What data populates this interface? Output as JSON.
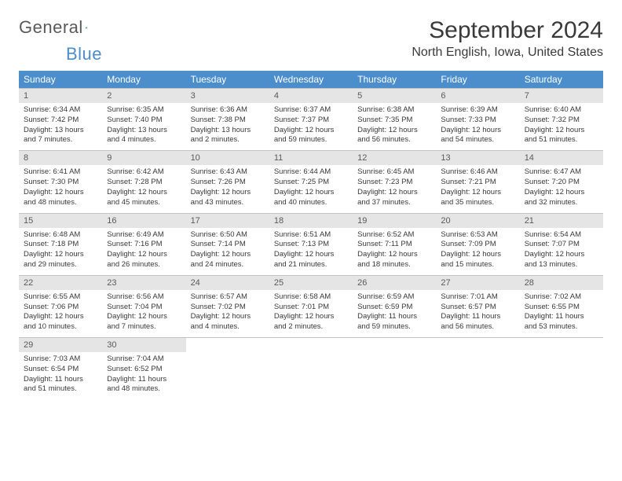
{
  "logo": {
    "word1": "General",
    "word2": "Blue"
  },
  "title": "September 2024",
  "location": "North English, Iowa, United States",
  "styling": {
    "header_bg": "#4b8ecb",
    "header_text": "#ffffff",
    "daynum_bg": "#e5e5e5",
    "body_text": "#3a3a3a",
    "border": "#c4c4c4",
    "page_bg": "#ffffff",
    "title_fontsize": 30,
    "location_fontsize": 16,
    "cell_fontsize": 9.5
  },
  "dayHeaders": [
    "Sunday",
    "Monday",
    "Tuesday",
    "Wednesday",
    "Thursday",
    "Friday",
    "Saturday"
  ],
  "days": [
    {
      "n": 1,
      "sunrise": "6:34 AM",
      "sunset": "7:42 PM",
      "daylight": "13 hours and 7 minutes."
    },
    {
      "n": 2,
      "sunrise": "6:35 AM",
      "sunset": "7:40 PM",
      "daylight": "13 hours and 4 minutes."
    },
    {
      "n": 3,
      "sunrise": "6:36 AM",
      "sunset": "7:38 PM",
      "daylight": "13 hours and 2 minutes."
    },
    {
      "n": 4,
      "sunrise": "6:37 AM",
      "sunset": "7:37 PM",
      "daylight": "12 hours and 59 minutes."
    },
    {
      "n": 5,
      "sunrise": "6:38 AM",
      "sunset": "7:35 PM",
      "daylight": "12 hours and 56 minutes."
    },
    {
      "n": 6,
      "sunrise": "6:39 AM",
      "sunset": "7:33 PM",
      "daylight": "12 hours and 54 minutes."
    },
    {
      "n": 7,
      "sunrise": "6:40 AM",
      "sunset": "7:32 PM",
      "daylight": "12 hours and 51 minutes."
    },
    {
      "n": 8,
      "sunrise": "6:41 AM",
      "sunset": "7:30 PM",
      "daylight": "12 hours and 48 minutes."
    },
    {
      "n": 9,
      "sunrise": "6:42 AM",
      "sunset": "7:28 PM",
      "daylight": "12 hours and 45 minutes."
    },
    {
      "n": 10,
      "sunrise": "6:43 AM",
      "sunset": "7:26 PM",
      "daylight": "12 hours and 43 minutes."
    },
    {
      "n": 11,
      "sunrise": "6:44 AM",
      "sunset": "7:25 PM",
      "daylight": "12 hours and 40 minutes."
    },
    {
      "n": 12,
      "sunrise": "6:45 AM",
      "sunset": "7:23 PM",
      "daylight": "12 hours and 37 minutes."
    },
    {
      "n": 13,
      "sunrise": "6:46 AM",
      "sunset": "7:21 PM",
      "daylight": "12 hours and 35 minutes."
    },
    {
      "n": 14,
      "sunrise": "6:47 AM",
      "sunset": "7:20 PM",
      "daylight": "12 hours and 32 minutes."
    },
    {
      "n": 15,
      "sunrise": "6:48 AM",
      "sunset": "7:18 PM",
      "daylight": "12 hours and 29 minutes."
    },
    {
      "n": 16,
      "sunrise": "6:49 AM",
      "sunset": "7:16 PM",
      "daylight": "12 hours and 26 minutes."
    },
    {
      "n": 17,
      "sunrise": "6:50 AM",
      "sunset": "7:14 PM",
      "daylight": "12 hours and 24 minutes."
    },
    {
      "n": 18,
      "sunrise": "6:51 AM",
      "sunset": "7:13 PM",
      "daylight": "12 hours and 21 minutes."
    },
    {
      "n": 19,
      "sunrise": "6:52 AM",
      "sunset": "7:11 PM",
      "daylight": "12 hours and 18 minutes."
    },
    {
      "n": 20,
      "sunrise": "6:53 AM",
      "sunset": "7:09 PM",
      "daylight": "12 hours and 15 minutes."
    },
    {
      "n": 21,
      "sunrise": "6:54 AM",
      "sunset": "7:07 PM",
      "daylight": "12 hours and 13 minutes."
    },
    {
      "n": 22,
      "sunrise": "6:55 AM",
      "sunset": "7:06 PM",
      "daylight": "12 hours and 10 minutes."
    },
    {
      "n": 23,
      "sunrise": "6:56 AM",
      "sunset": "7:04 PM",
      "daylight": "12 hours and 7 minutes."
    },
    {
      "n": 24,
      "sunrise": "6:57 AM",
      "sunset": "7:02 PM",
      "daylight": "12 hours and 4 minutes."
    },
    {
      "n": 25,
      "sunrise": "6:58 AM",
      "sunset": "7:01 PM",
      "daylight": "12 hours and 2 minutes."
    },
    {
      "n": 26,
      "sunrise": "6:59 AM",
      "sunset": "6:59 PM",
      "daylight": "11 hours and 59 minutes."
    },
    {
      "n": 27,
      "sunrise": "7:01 AM",
      "sunset": "6:57 PM",
      "daylight": "11 hours and 56 minutes."
    },
    {
      "n": 28,
      "sunrise": "7:02 AM",
      "sunset": "6:55 PM",
      "daylight": "11 hours and 53 minutes."
    },
    {
      "n": 29,
      "sunrise": "7:03 AM",
      "sunset": "6:54 PM",
      "daylight": "11 hours and 51 minutes."
    },
    {
      "n": 30,
      "sunrise": "7:04 AM",
      "sunset": "6:52 PM",
      "daylight": "11 hours and 48 minutes."
    }
  ],
  "labels": {
    "sunrise": "Sunrise:",
    "sunset": "Sunset:",
    "daylight": "Daylight:"
  }
}
